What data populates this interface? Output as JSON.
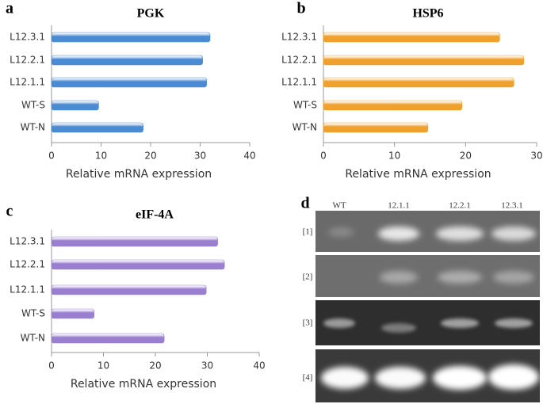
{
  "chart_data": [
    {
      "type": "barh",
      "panel": "a",
      "title": "PGK",
      "xlabel": "Relative mRNA expression",
      "categories": [
        "L12.3.1",
        "L12.2.1",
        "L12.1.1",
        "WT-S",
        "WT-N"
      ],
      "values": [
        32,
        30.5,
        31.3,
        9.5,
        18.5
      ],
      "color": "#4a8bd4",
      "xlim": [
        0,
        40
      ],
      "xticks": [
        0,
        10,
        20,
        30,
        40
      ]
    },
    {
      "type": "barh",
      "panel": "b",
      "title": "HSP6",
      "xlabel": "Relative mRNA expression",
      "categories": [
        "L12.3.1",
        "L12.2.1",
        "L12.1.1",
        "WT-S",
        "WT-N"
      ],
      "values": [
        24.8,
        28.2,
        26.8,
        19.5,
        14.7
      ],
      "color": "#f0a02c",
      "xlim": [
        0,
        30
      ],
      "xticks": [
        0,
        10,
        20,
        30
      ]
    },
    {
      "type": "barh",
      "panel": "c",
      "title": "eIF-4A",
      "xlabel": "Relative mRNA expression",
      "categories": [
        "L12.3.1",
        "L12.2.1",
        "L12.1.1",
        "WT-S",
        "WT-N"
      ],
      "values": [
        32,
        33.3,
        29.8,
        8.2,
        21.7
      ],
      "color": "#9a7ed0",
      "xlim": [
        0,
        40
      ],
      "xticks": [
        0,
        10,
        20,
        30,
        40
      ]
    }
  ],
  "gel": {
    "panel": "d",
    "lanes": [
      "WT",
      "12.1.1",
      "12.2.1",
      "12.3.1"
    ],
    "rows": [
      "[1]",
      "[2]",
      "[3]",
      "[4]"
    ]
  }
}
